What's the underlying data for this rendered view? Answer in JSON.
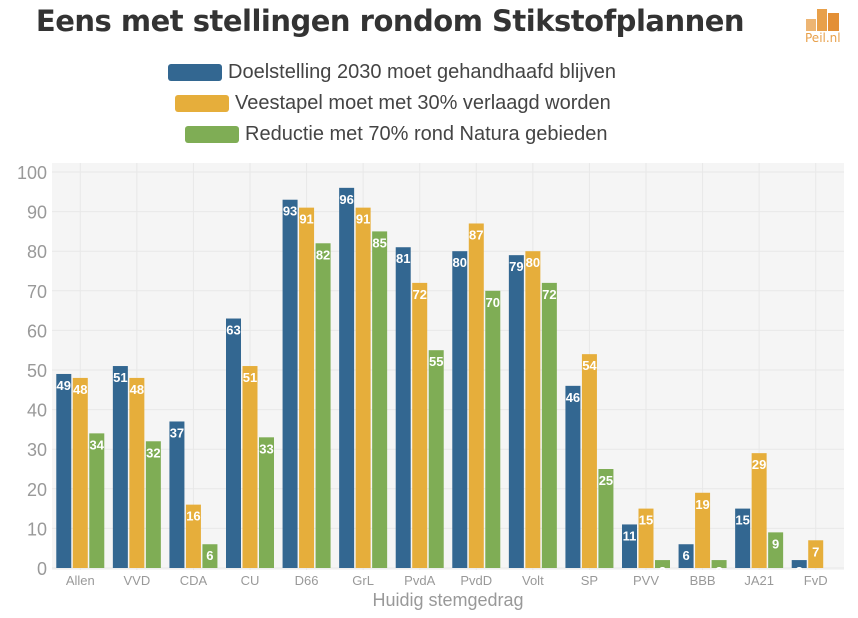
{
  "header": {
    "title": "Eens met stellingen rondom Stikstofplannen",
    "logo_text": "Peil.nl"
  },
  "colors": {
    "series": [
      "#336791",
      "#E6AE3B",
      "#7FAD55"
    ],
    "plot_bg": "#F5F5F5",
    "grid": "#E8E8E8",
    "tick_text": "#999999",
    "logo": "#E8A04A"
  },
  "chart_data": {
    "type": "bar",
    "title": "Eens met stellingen rondom Stikstofplannen",
    "xlabel": "Huidig stemgedrag",
    "ylabel": "",
    "ylim": [
      0,
      100
    ],
    "yticks": [
      0,
      10,
      20,
      30,
      40,
      50,
      60,
      70,
      80,
      90,
      100
    ],
    "grid": true,
    "legend_position": "top-center",
    "categories": [
      "Allen",
      "VVD",
      "CDA",
      "CU",
      "D66",
      "GrL",
      "PvdA",
      "PvdD",
      "Volt",
      "SP",
      "PVV",
      "BBB",
      "JA21",
      "FvD"
    ],
    "series": [
      {
        "name": "Doelstelling 2030 moet gehandhaafd blijven",
        "values": [
          49,
          51,
          37,
          63,
          93,
          96,
          81,
          80,
          79,
          46,
          11,
          6,
          15,
          2
        ]
      },
      {
        "name": "Veestapel moet met 30% verlaagd worden",
        "values": [
          48,
          48,
          16,
          51,
          91,
          91,
          72,
          87,
          80,
          54,
          15,
          19,
          29,
          7
        ]
      },
      {
        "name": "Reductie met 70% rond Natura gebieden",
        "values": [
          34,
          32,
          6,
          33,
          82,
          85,
          55,
          70,
          72,
          25,
          2,
          2,
          9,
          null
        ]
      }
    ]
  }
}
